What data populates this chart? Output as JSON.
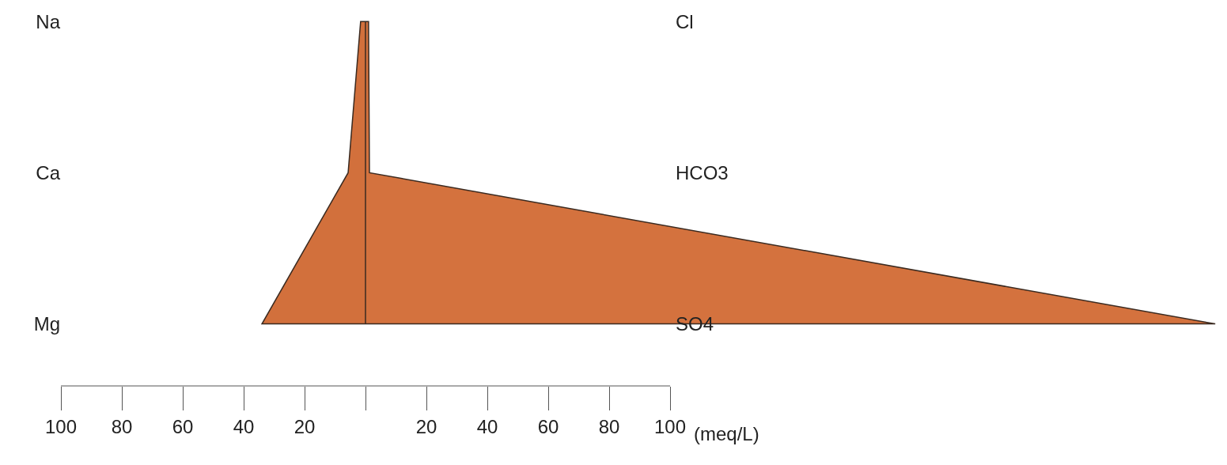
{
  "chart_data": {
    "type": "area",
    "orientation": "horizontal",
    "categories": [
      "Na",
      "Ca",
      "Mg"
    ],
    "series": [
      {
        "color": "#d2703c",
        "values": [
          -1.6,
          -5.7,
          -34
        ]
      },
      {
        "color": "#d4723e",
        "values": [
          1,
          1.3,
          279
        ]
      }
    ],
    "annotations": [
      "Cl",
      "HCO3",
      "SO4"
    ],
    "xlabel": "(meq/L)",
    "xlim": [
      -100,
      280
    ],
    "xticks": [
      {
        "value": -100,
        "label": "100"
      },
      {
        "value": -80,
        "label": "80"
      },
      {
        "value": -60,
        "label": "60"
      },
      {
        "value": -40,
        "label": "40"
      },
      {
        "value": -20,
        "label": "20"
      },
      {
        "value": 0,
        "label": null
      },
      20,
      40,
      60,
      80,
      100
    ],
    "ref_lines": [
      {
        "axis": "x",
        "value": 0,
        "color": "#3a2a20"
      }
    ],
    "grid": false
  }
}
